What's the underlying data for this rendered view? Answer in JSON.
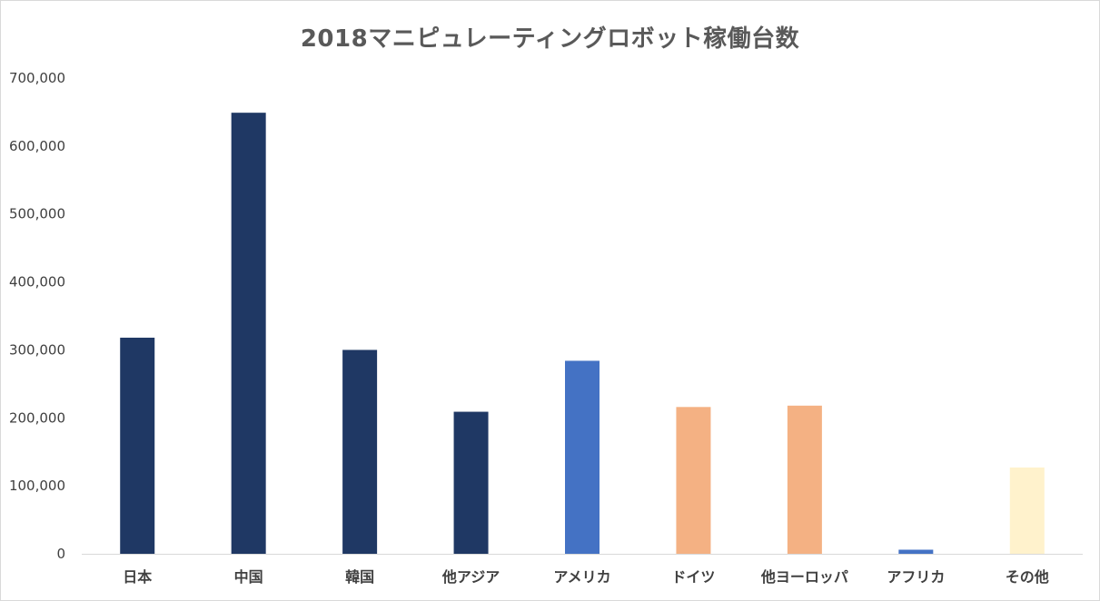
{
  "chart_data": {
    "type": "bar",
    "title": "2018マニピュレーティングロボット稼働台数",
    "xlabel": "",
    "ylabel": "",
    "ylim": [
      0,
      700000
    ],
    "yticks": [
      0,
      100000,
      200000,
      300000,
      400000,
      500000,
      600000,
      700000
    ],
    "ytick_labels": [
      "0",
      "100,000",
      "200,000",
      "300,000",
      "400,000",
      "500,000",
      "600,000",
      "700,000"
    ],
    "grid": false,
    "legend": "none",
    "categories": [
      "日本",
      "中国",
      "韓国",
      "他アジア",
      "アメリカ",
      "ドイツ",
      "他ヨーロッパ",
      "アフリカ",
      "その他"
    ],
    "values": [
      318000,
      649000,
      300000,
      209000,
      284000,
      216000,
      218000,
      6000,
      127000
    ],
    "colors": [
      "#1f3864",
      "#1f3864",
      "#1f3864",
      "#1f3864",
      "#4472c4",
      "#f4b183",
      "#f4b183",
      "#4472c4",
      "#fff2cc"
    ]
  }
}
